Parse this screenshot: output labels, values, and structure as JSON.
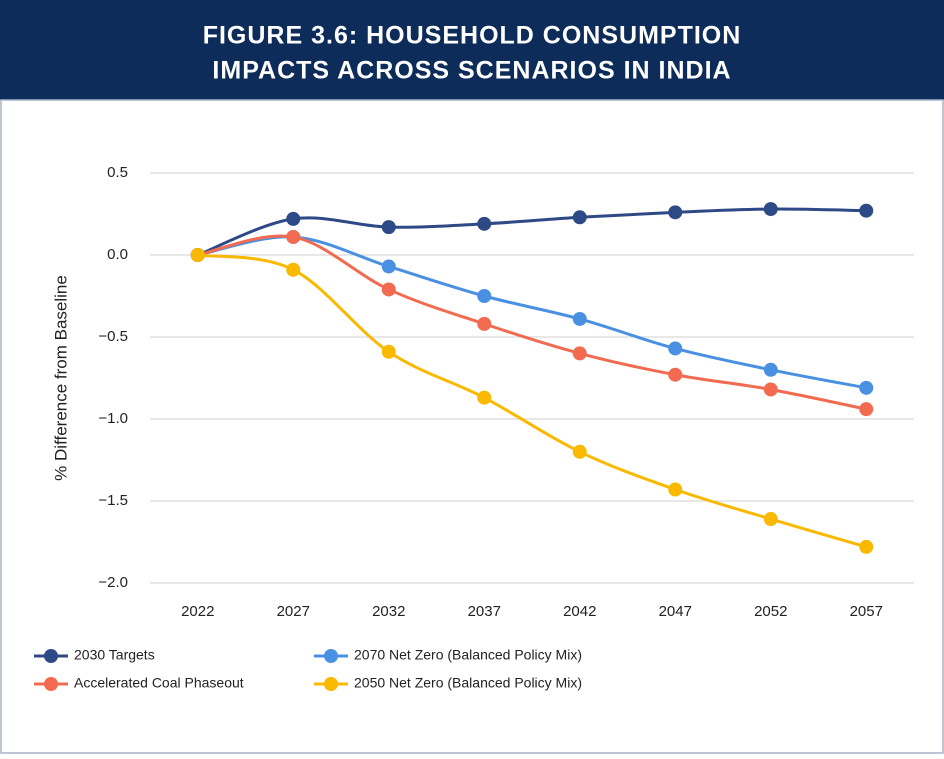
{
  "chart_data": {
    "type": "line",
    "title": "FIGURE 3.6:  HOUSEHOLD CONSUMPTION",
    "subtitle": "IMPACTS ACROSS SCENARIOS IN INDIA",
    "y_label": "% Difference from Baseline",
    "categories": [
      "2022",
      "2027",
      "2032",
      "2037",
      "2042",
      "2047",
      "2052",
      "2057"
    ],
    "series": [
      {
        "name": "2030 Targets",
        "color": "#2e4a86",
        "values": [
          0,
          0.22,
          0.17,
          0.19,
          0.23,
          0.26,
          0.28,
          0.27
        ]
      },
      {
        "name": "2070 Net Zero (Balanced Policy Mix)",
        "color": "#4a90e2",
        "values": [
          0,
          0.11,
          -0.07,
          -0.25,
          -0.39,
          -0.57,
          -0.7,
          -0.81
        ]
      },
      {
        "name": "Accelerated Coal Phaseout",
        "color": "#f26b50",
        "values": [
          0,
          0.11,
          -0.21,
          -0.42,
          -0.6,
          -0.73,
          -0.82,
          -0.94
        ]
      },
      {
        "name": "2050 Net Zero (Balanced Policy Mix)",
        "color": "#f9b900",
        "values": [
          0,
          -0.09,
          -0.59,
          -0.87,
          -1.2,
          -1.43,
          -1.61,
          -1.78
        ]
      }
    ],
    "ylim": [
      -2,
      0.5
    ],
    "yticks": [
      0.5,
      {
        "value": 0,
        "label": "0.0"
      },
      {
        "value": -0.5,
        "label": "−0.5"
      },
      {
        "value": -1,
        "label": "−1.0"
      },
      {
        "value": -1.5,
        "label": "−1.5"
      },
      {
        "value": -2,
        "label": "−2.0"
      }
    ],
    "grid": true,
    "smooth": true
  }
}
